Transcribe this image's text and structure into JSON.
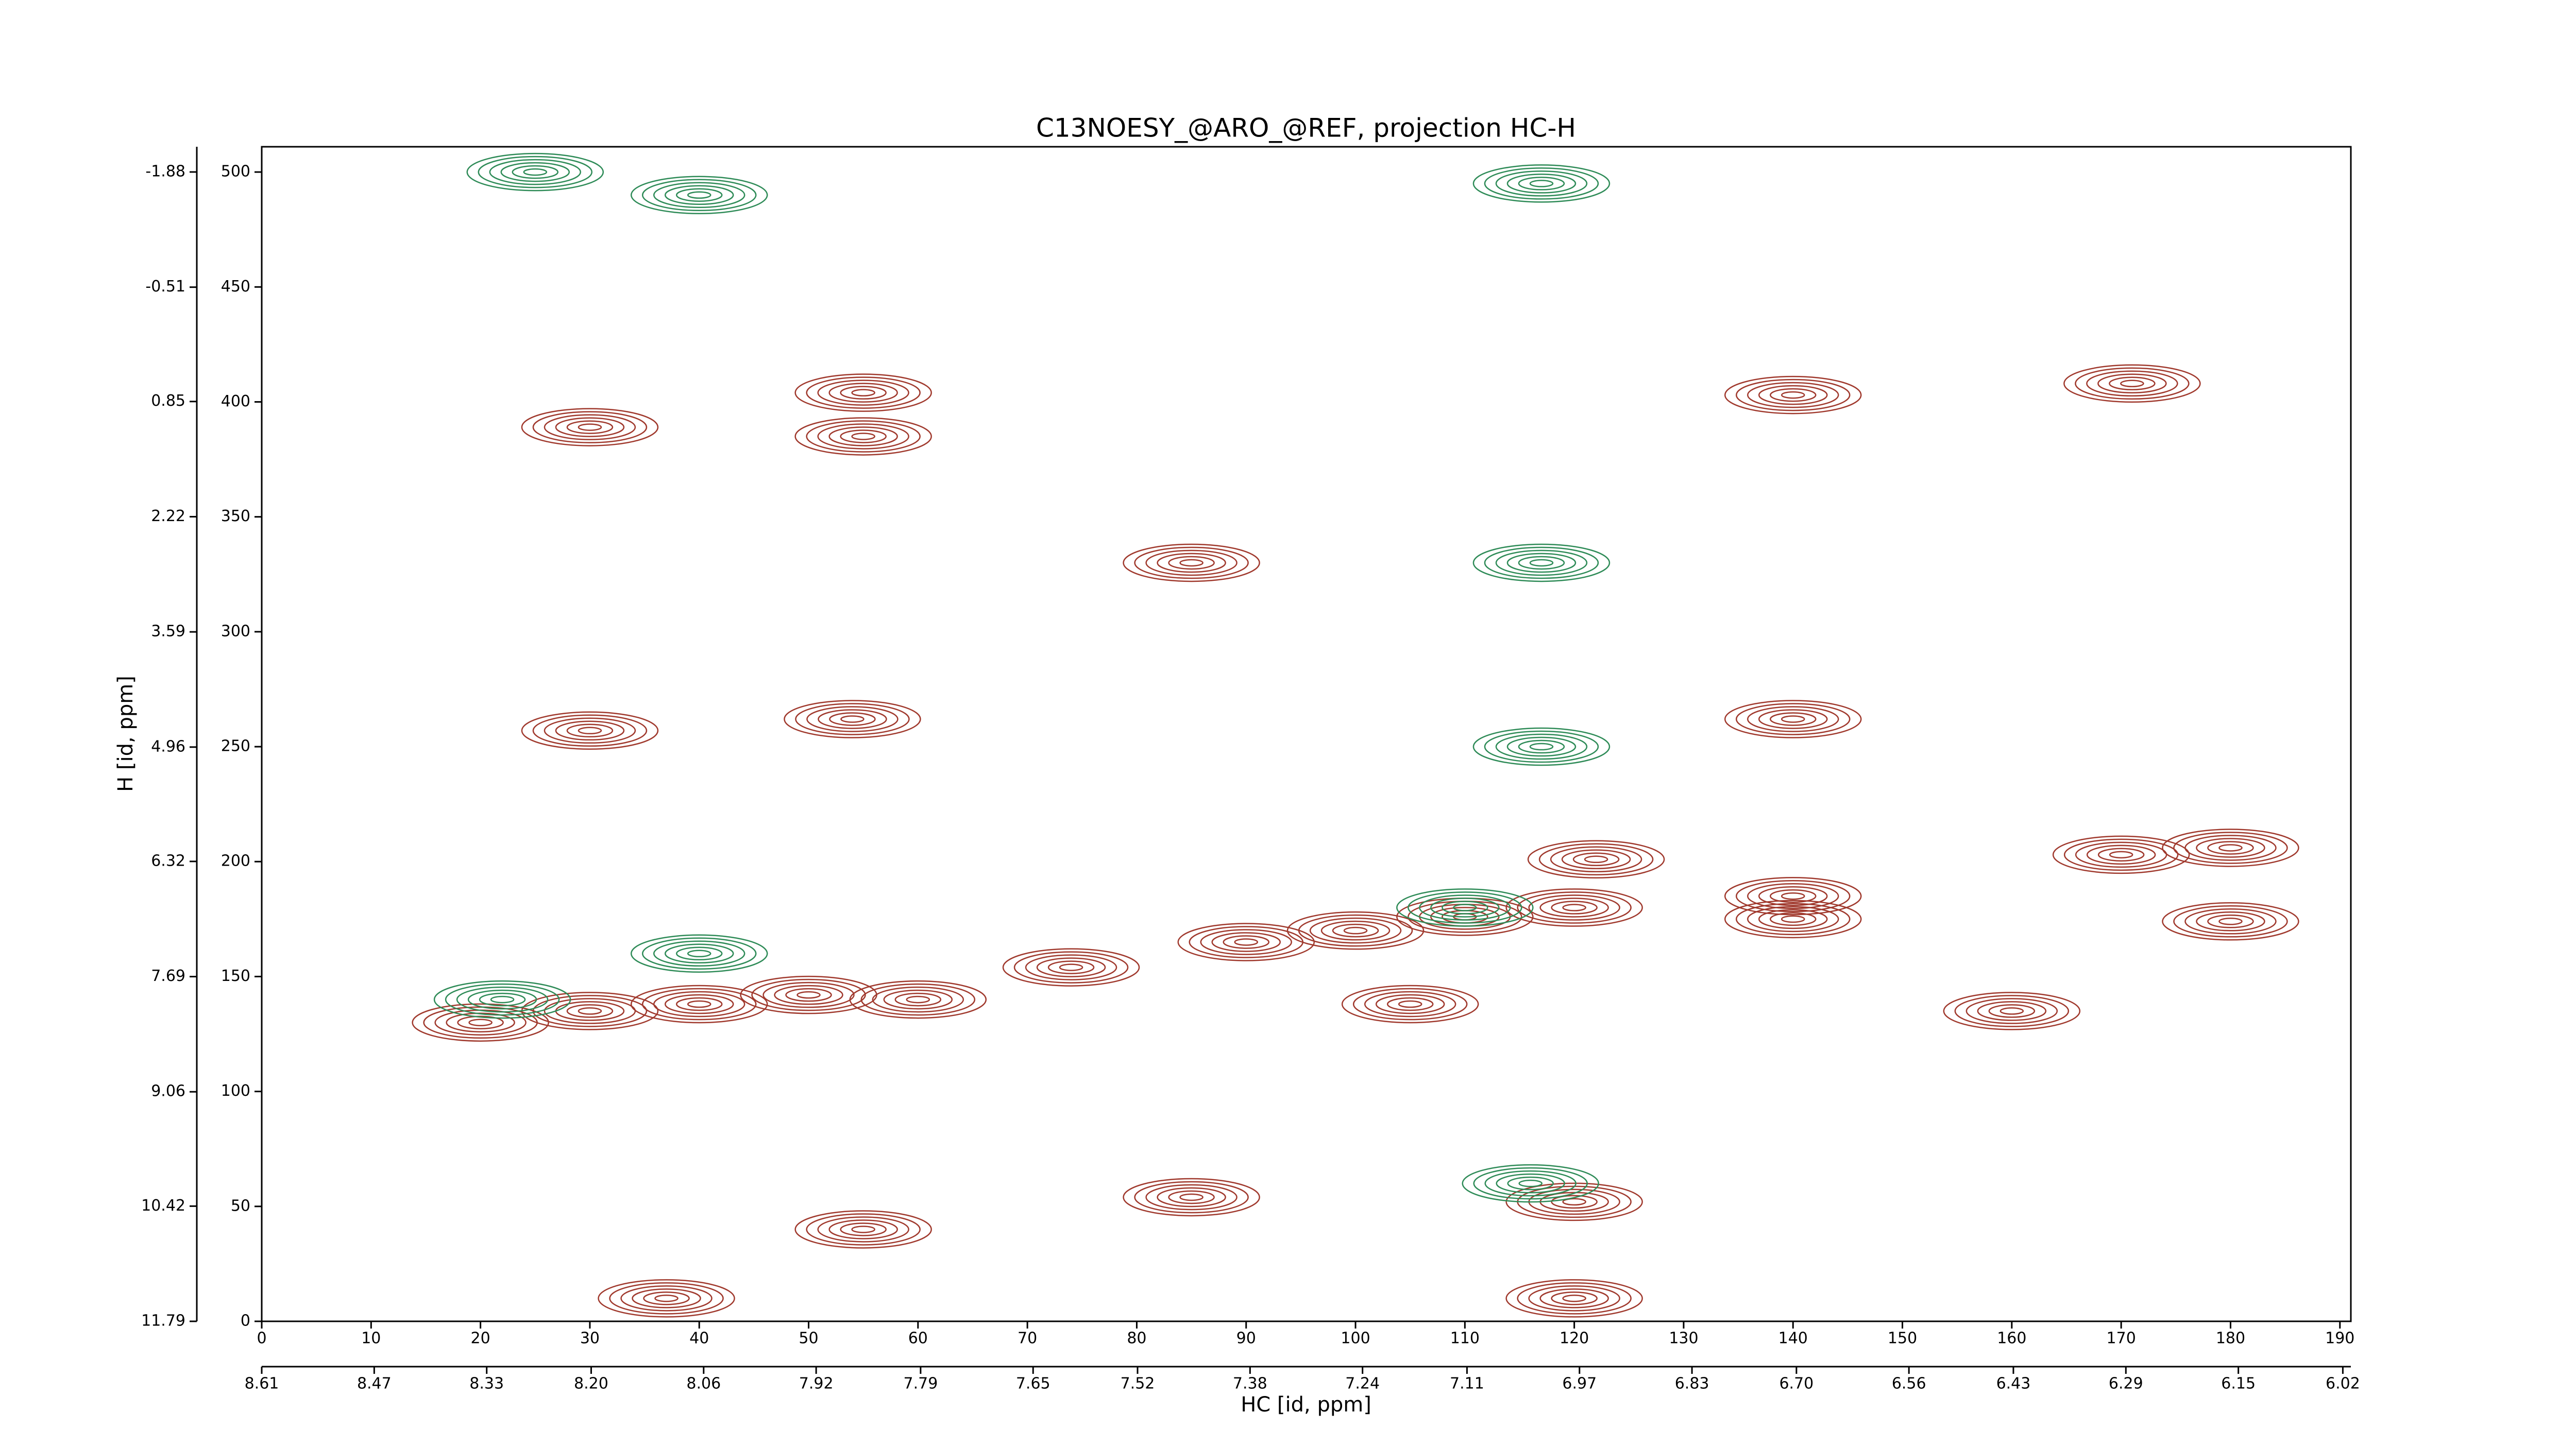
{
  "chart_data": {
    "type": "contour",
    "title": "C13NOESY_@ARO_@REF, projection HC-H",
    "xlabel": "HC [id, ppm]",
    "ylabel": "H [id, ppm]",
    "xlim": [
      0,
      191
    ],
    "xticks": [
      0,
      10,
      20,
      30,
      40,
      50,
      60,
      70,
      80,
      90,
      100,
      110,
      120,
      130,
      140,
      150,
      160,
      170,
      180,
      190
    ],
    "x2lim": [
      8.61,
      6.01
    ],
    "x2ticks": [
      8.61,
      8.47,
      8.33,
      {
        "value": 8.2,
        "label": "8.20"
      },
      8.06,
      7.92,
      7.79,
      7.65,
      7.52,
      7.38,
      7.24,
      7.11,
      6.97,
      6.83,
      {
        "value": 6.7,
        "label": "6.70"
      },
      6.56,
      6.43,
      6.29,
      6.15,
      6.02
    ],
    "ylim": [
      0,
      511
    ],
    "yticks": [
      0,
      50,
      100,
      150,
      200,
      250,
      300,
      350,
      400,
      450,
      500
    ],
    "y2lim": [
      11.79,
      -2.18
    ],
    "y2ticks": [
      11.79,
      10.42,
      9.06,
      7.69,
      6.32,
      4.96,
      3.59,
      2.22,
      0.85,
      -0.51,
      -1.88
    ],
    "series": [
      {
        "color": "#a0392d",
        "x": [
          20,
          30,
          40,
          50,
          60,
          55,
          55,
          30,
          54,
          30,
          74,
          90,
          100,
          110,
          120,
          140,
          140,
          180,
          170,
          140,
          171,
          122,
          120,
          85,
          55,
          140,
          105,
          160,
          180,
          37,
          85,
          120
        ],
        "values": [
          130,
          135,
          138,
          142,
          140,
          404,
          385,
          389,
          262,
          257,
          154,
          165,
          170,
          176,
          180,
          185,
          175,
          206,
          203,
          403,
          408,
          201,
          52,
          54,
          40,
          262,
          138,
          135,
          174,
          10,
          330,
          10
        ]
      },
      {
        "color": "#2e8b57",
        "x": [
          25,
          40,
          117,
          110,
          117,
          22,
          40,
          117,
          116
        ],
        "values": [
          500,
          490,
          495,
          180,
          330,
          140,
          160,
          250,
          60
        ]
      }
    ]
  }
}
